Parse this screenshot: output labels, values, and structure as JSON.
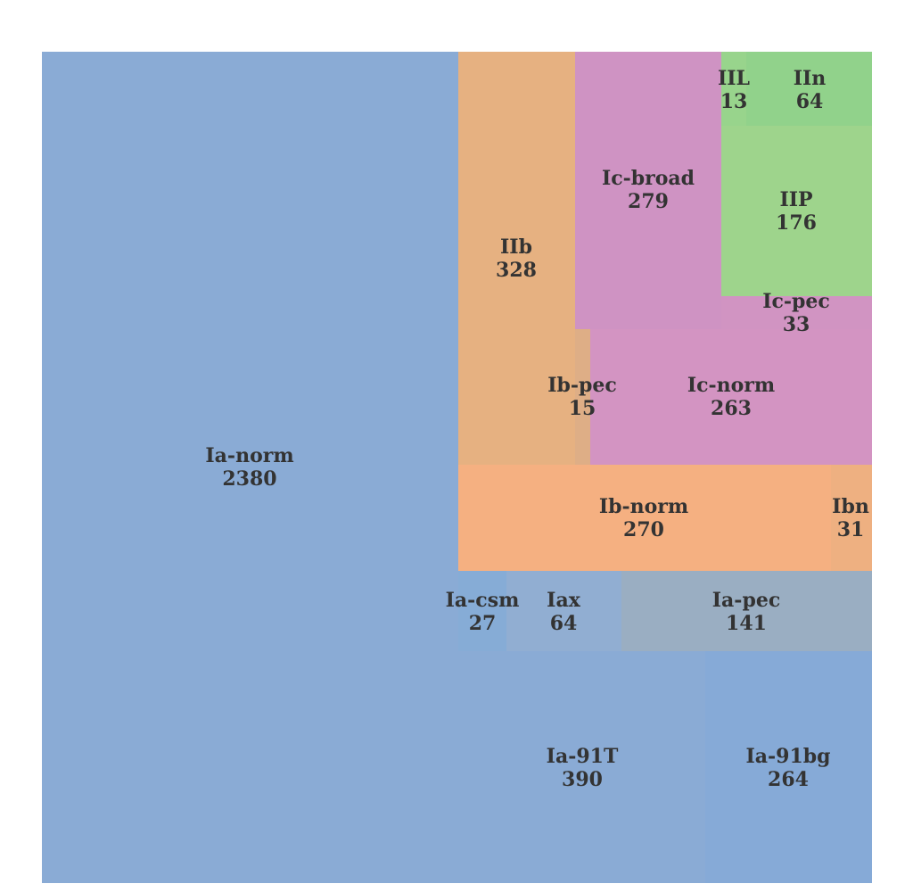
{
  "chart_data": {
    "type": "treemap",
    "title": "",
    "nodes": [
      {
        "name": "Ia-norm",
        "value": 2380,
        "color": "#8aabd5"
      },
      {
        "name": "Ia-91T",
        "value": 390,
        "color": "#8aabd5"
      },
      {
        "name": "Ia-91bg",
        "value": 264,
        "color": "#86aad7"
      },
      {
        "name": "Ia-csm",
        "value": 27,
        "color": "#86acd6"
      },
      {
        "name": "Iax",
        "value": 64,
        "color": "#91aed2"
      },
      {
        "name": "Ia-pec",
        "value": 141,
        "color": "#9aaec2"
      },
      {
        "name": "Ib-norm",
        "value": 270,
        "color": "#f5b081"
      },
      {
        "name": "Ibn",
        "value": 31,
        "color": "#eeb081"
      },
      {
        "name": "IIb",
        "value": 328,
        "color": "#e6b181"
      },
      {
        "name": "Ib-pec",
        "value": 15,
        "color": "#deae86"
      },
      {
        "name": "Ic-broad",
        "value": 279,
        "color": "#cf93c3"
      },
      {
        "name": "Ic-norm",
        "value": 263,
        "color": "#d394c2"
      },
      {
        "name": "Ic-pec",
        "value": 33,
        "color": "#d194c2"
      },
      {
        "name": "IIL",
        "value": 13,
        "color": "#98d48c"
      },
      {
        "name": "IIn",
        "value": 64,
        "color": "#91d28b"
      },
      {
        "name": "IIP",
        "value": 176,
        "color": "#9ed48c"
      }
    ]
  }
}
